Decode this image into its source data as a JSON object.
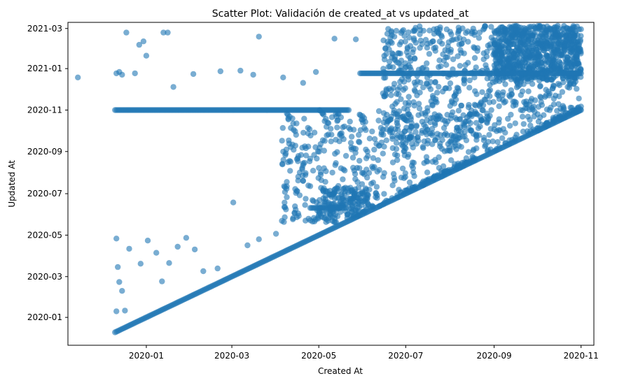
{
  "chart_data": {
    "type": "scatter",
    "title": "Scatter Plot: Validación de created_at vs updated_at",
    "xlabel": "Created At",
    "ylabel": "Updated At",
    "x_axis": {
      "type": "date",
      "range": [
        "2019-11-07",
        "2020-11-10"
      ],
      "ticks": [
        "2020-01",
        "2020-03",
        "2020-05",
        "2020-07",
        "2020-09",
        "2020-11"
      ]
    },
    "y_axis": {
      "type": "date",
      "range": [
        "2019-11-21",
        "2021-03-10"
      ],
      "ticks": [
        "2020-01",
        "2020-03",
        "2020-05",
        "2020-07",
        "2020-09",
        "2020-11",
        "2021-01",
        "2021-03"
      ]
    },
    "marker_color": "#1f77b4",
    "marker_alpha": 0.6,
    "grid": false,
    "legend": "none",
    "series": [
      {
        "segments": [
          {
            "description": "diagonal",
            "x": [
              "2019-12-10",
              "2020-11-01"
            ],
            "y": [
              "2019-12-10",
              "2020-11-01"
            ]
          },
          {
            "description": "horizontal",
            "x": [
              "2019-12-10",
              "2020-05-22"
            ],
            "y": [
              "2020-11-01",
              "2020-11-01"
            ]
          },
          {
            "description": "horizontal",
            "x": [
              "2020-05-30",
              "2020-11-01"
            ],
            "y": [
              "2020-12-25",
              "2020-12-25"
            ]
          },
          {
            "description": "horizontal",
            "x": [
              "2020-04-25",
              "2020-05-20"
            ],
            "y": [
              "2020-06-10",
              "2020-06-10"
            ]
          }
        ],
        "points": [
          [
            "2019-11-14",
            "2020-12-19"
          ],
          [
            "2019-12-11",
            "2020-12-25"
          ],
          [
            "2019-12-13",
            "2020-12-27"
          ],
          [
            "2019-12-15",
            "2020-12-23"
          ],
          [
            "2019-12-18",
            "2021-02-23"
          ],
          [
            "2019-12-27",
            "2021-02-05"
          ],
          [
            "2019-12-30",
            "2021-02-10"
          ],
          [
            "2020-01-01",
            "2021-01-20"
          ],
          [
            "2019-12-24",
            "2020-12-25"
          ],
          [
            "2020-01-13",
            "2021-02-23"
          ],
          [
            "2020-01-16",
            "2021-02-23"
          ],
          [
            "2020-01-20",
            "2020-12-05"
          ],
          [
            "2020-02-03",
            "2020-12-24"
          ],
          [
            "2020-02-22",
            "2020-12-28"
          ],
          [
            "2020-03-07",
            "2020-12-29"
          ],
          [
            "2020-03-16",
            "2020-12-23"
          ],
          [
            "2020-03-20",
            "2021-02-17"
          ],
          [
            "2020-04-06",
            "2020-12-19"
          ],
          [
            "2020-04-20",
            "2020-12-11"
          ],
          [
            "2020-04-29",
            "2020-12-27"
          ],
          [
            "2020-05-12",
            "2021-02-14"
          ],
          [
            "2020-05-27",
            "2021-02-13"
          ],
          [
            "2020-06-23",
            "2021-02-17"
          ],
          [
            "2020-07-24",
            "2021-02-23"
          ],
          [
            "2020-08-09",
            "2021-02-06"
          ],
          [
            "2020-08-11",
            "2020-12-10"
          ],
          [
            "2020-09-04",
            "2020-11-22"
          ],
          [
            "2020-10-04",
            "2020-11-13"
          ],
          [
            "2019-12-11",
            "2020-04-26"
          ],
          [
            "2019-12-12",
            "2020-03-15"
          ],
          [
            "2019-12-13",
            "2020-02-22"
          ],
          [
            "2019-12-15",
            "2020-02-09"
          ],
          [
            "2019-12-11",
            "2020-01-10"
          ],
          [
            "2019-12-17",
            "2020-01-11"
          ],
          [
            "2019-12-20",
            "2020-04-11"
          ],
          [
            "2019-12-28",
            "2020-03-20"
          ],
          [
            "2020-01-02",
            "2020-04-23"
          ],
          [
            "2020-01-08",
            "2020-04-05"
          ],
          [
            "2020-01-12",
            "2020-02-23"
          ],
          [
            "2020-01-17",
            "2020-03-21"
          ],
          [
            "2020-01-23",
            "2020-04-14"
          ],
          [
            "2020-01-29",
            "2020-04-27"
          ],
          [
            "2020-02-04",
            "2020-04-10"
          ],
          [
            "2020-02-10",
            "2020-03-09"
          ],
          [
            "2020-02-20",
            "2020-03-13"
          ],
          [
            "2020-03-02",
            "2020-06-18"
          ],
          [
            "2020-03-12",
            "2020-04-16"
          ],
          [
            "2020-03-20",
            "2020-04-25"
          ],
          [
            "2020-04-01",
            "2020-05-03"
          ],
          [
            "2020-04-15",
            "2020-07-02"
          ],
          [
            "2020-04-25",
            "2020-07-12"
          ],
          [
            "2020-05-06",
            "2020-08-03"
          ],
          [
            "2020-05-13",
            "2020-08-15"
          ],
          [
            "2020-05-25",
            "2020-08-23"
          ],
          [
            "2020-06-03",
            "2020-09-04"
          ],
          [
            "2020-06-15",
            "2020-08-29"
          ],
          [
            "2020-06-25",
            "2020-09-21"
          ],
          [
            "2020-07-05",
            "2020-10-06"
          ],
          [
            "2020-07-14",
            "2020-09-16"
          ],
          [
            "2020-07-23",
            "2020-10-18"
          ],
          [
            "2020-08-02",
            "2020-09-25"
          ],
          [
            "2020-08-15",
            "2020-10-26"
          ],
          [
            "2020-08-28",
            "2020-10-20"
          ],
          [
            "2020-09-08",
            "2020-11-12"
          ],
          [
            "2020-09-20",
            "2020-12-13"
          ],
          [
            "2020-10-01",
            "2021-01-24"
          ],
          [
            "2020-10-12",
            "2020-12-03"
          ],
          [
            "2020-10-24",
            "2021-02-09"
          ]
        ],
        "clusters": [
          {
            "x": [
              "2020-05-01",
              "2020-06-05"
            ],
            "y": [
              "2020-05-20",
              "2020-07-10"
            ],
            "count": 160
          },
          {
            "x": [
              "2020-04-05",
              "2020-08-20"
            ],
            "y": [
              "2020-05-20",
              "2020-11-01"
            ],
            "count": 520
          },
          {
            "x": [
              "2020-06-15",
              "2020-11-01"
            ],
            "y": [
              "2020-09-01",
              "2021-03-05"
            ],
            "count": 820
          },
          {
            "x": [
              "2020-09-01",
              "2020-11-01"
            ],
            "y": [
              "2020-12-15",
              "2021-03-05"
            ],
            "count": 700
          }
        ]
      }
    ]
  }
}
